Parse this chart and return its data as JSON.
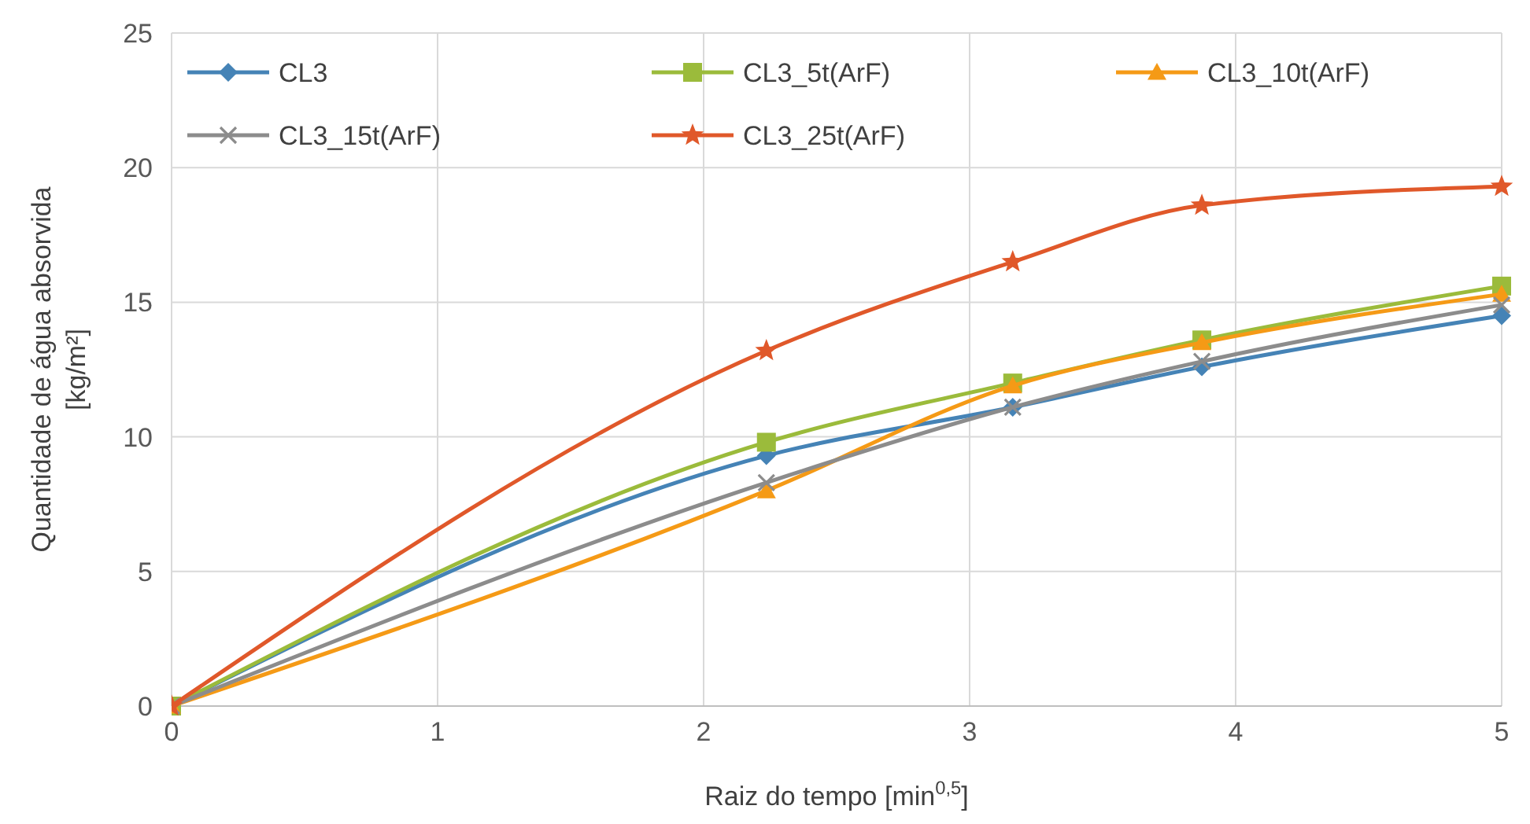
{
  "chart_data": {
    "type": "line",
    "xlabel": "Raiz do tempo [min$^{0,5}$]",
    "ylabel": "Quantidade de água absorvida [kg/m²]",
    "x": [
      0,
      2.236,
      3.162,
      3.873,
      5
    ],
    "xlim": [
      0,
      5
    ],
    "xticks": [
      0,
      1,
      2,
      3,
      4,
      5
    ],
    "ylim": [
      0,
      25
    ],
    "yticks": [
      0,
      5,
      10,
      15,
      20,
      25
    ],
    "grid": true,
    "legend": "top",
    "series": [
      {
        "name": "CL3",
        "color": "#4583b6",
        "marker": "diamond",
        "values": [
          0,
          9.3,
          11.1,
          12.6,
          14.5
        ]
      },
      {
        "name": "CL3_5t(ArF)",
        "color": "#9bbb3b",
        "marker": "square",
        "values": [
          0,
          9.8,
          12.0,
          13.6,
          15.6
        ]
      },
      {
        "name": "CL3_10t(ArF)",
        "color": "#f59a16",
        "marker": "triangle",
        "values": [
          0,
          8.0,
          11.9,
          13.5,
          15.3
        ]
      },
      {
        "name": "CL3_15t(ArF)",
        "color": "#8c8c8c",
        "marker": "cross",
        "values": [
          0,
          8.3,
          11.1,
          12.8,
          14.9
        ]
      },
      {
        "name": "CL3_25t(ArF)",
        "color": "#e0582a",
        "marker": "star",
        "values": [
          0,
          13.2,
          16.5,
          18.6,
          19.3
        ]
      }
    ]
  }
}
